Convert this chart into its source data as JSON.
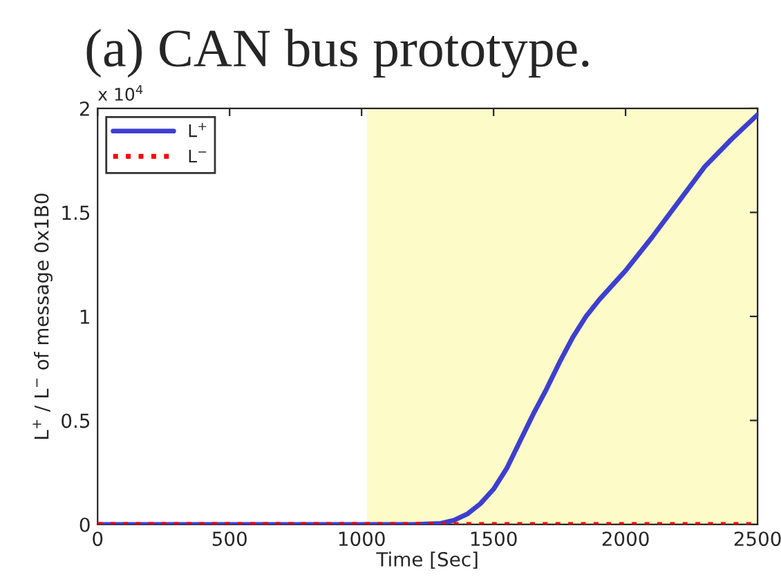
{
  "chart_data": {
    "type": "line",
    "title": "(a) CAN bus prototype.",
    "xlabel": "Time [Sec]",
    "ylabel": "L$^{+}$ / L$^{−}$ of message 0x1B0",
    "annotations": [
      "x 10$^{4}$"
    ],
    "legend": "top left",
    "grid": false,
    "xlim": [
      0,
      2500
    ],
    "xticks": [
      0,
      500,
      1000,
      1500,
      2000,
      2500
    ],
    "ylim": [
      0,
      2
    ],
    "yticks": [
      0,
      0.5,
      1,
      1.5,
      2
    ],
    "bands": [
      {
        "axis": "x",
        "from": 1020,
        "to": 2500,
        "color": "#fdfbc8"
      }
    ],
    "series": [
      {
        "name": "L$^{+}$",
        "color": "#3d3fd0",
        "line_style": "solid",
        "x": [
          0,
          1000,
          1200,
          1300,
          1350,
          1400,
          1450,
          1500,
          1550,
          1600,
          1650,
          1700,
          1750,
          1800,
          1850,
          1900,
          2000,
          2100,
          2200,
          2300,
          2400,
          2500
        ],
        "values": [
          0,
          0,
          0,
          0.005,
          0.02,
          0.05,
          0.1,
          0.17,
          0.27,
          0.4,
          0.53,
          0.65,
          0.78,
          0.9,
          1.0,
          1.08,
          1.22,
          1.38,
          1.55,
          1.72,
          1.85,
          1.97
        ]
      },
      {
        "name": "L$^{−}$",
        "color": "#ff0000",
        "line_style": "dotted",
        "x": [
          0,
          2500
        ],
        "values": [
          0,
          0
        ]
      }
    ]
  }
}
